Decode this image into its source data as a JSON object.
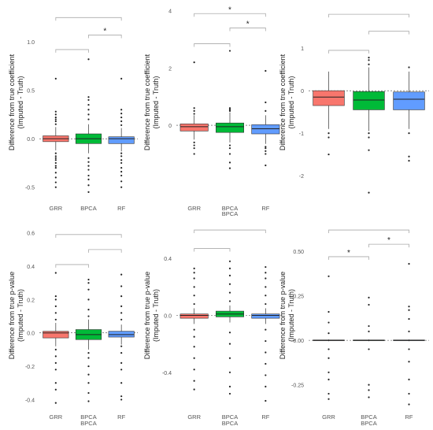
{
  "chart_data": [
    {
      "type": "box",
      "ylabel": "Difference from true coefficient\n(Imputed - Truth)",
      "xlabel": "",
      "categories": [
        "GRR",
        "BPCA",
        "RF"
      ],
      "colors": [
        "#f8766d",
        "#00ba38",
        "#619cff"
      ],
      "ylim": [
        -0.6,
        1.35
      ],
      "yticks": [
        -0.5,
        0.0,
        0.5,
        1.0
      ],
      "ytick_labels": [
        "-0.5",
        "0.0",
        "0.5",
        "1.0"
      ],
      "boxes": [
        {
          "q1": -0.03,
          "median": 0.0,
          "q3": 0.03,
          "whisker_low": -0.12,
          "whisker_high": 0.12,
          "outliers": [
            -0.5,
            -0.45,
            -0.4,
            -0.35,
            -0.3,
            -0.28,
            -0.25,
            -0.22,
            -0.2,
            -0.18,
            -0.15,
            0.15,
            0.18,
            0.2,
            0.22,
            0.25,
            0.28,
            0.62
          ]
        },
        {
          "q1": -0.05,
          "median": 0.0,
          "q3": 0.05,
          "whisker_low": -0.15,
          "whisker_high": 0.15,
          "outliers": [
            -0.55,
            -0.48,
            -0.42,
            -0.38,
            -0.32,
            -0.28,
            -0.24,
            -0.2,
            0.2,
            0.25,
            0.3,
            0.35,
            0.4,
            0.43,
            0.82
          ]
        },
        {
          "q1": -0.05,
          "median": 0.0,
          "q3": 0.02,
          "whisker_low": -0.13,
          "whisker_high": 0.11,
          "outliers": [
            -0.5,
            -0.44,
            -0.38,
            -0.34,
            -0.3,
            -0.25,
            -0.22,
            -0.18,
            -0.15,
            0.14,
            0.18,
            0.22,
            0.26,
            0.3,
            0.62
          ]
        }
      ],
      "significance": [
        {
          "from": 0,
          "to": 1,
          "y": 0.92,
          "label": ""
        },
        {
          "from": 1,
          "to": 2,
          "y": 1.07,
          "label": "*"
        },
        {
          "from": 0,
          "to": 2,
          "y": 1.25,
          "label": ""
        }
      ],
      "reference_line": 0
    },
    {
      "type": "box",
      "ylabel": "Difference from true coefficient\n(Imputed - Truth)",
      "xlabel": "BPCA",
      "categories": [
        "GRR",
        "BPCA",
        "RF"
      ],
      "colors": [
        "#f8766d",
        "#00ba38",
        "#619cff"
      ],
      "ylim": [
        -2.5,
        4.1
      ],
      "yticks": [
        0,
        2,
        4
      ],
      "ytick_labels": [
        "0",
        "2",
        "4"
      ],
      "boxes": [
        {
          "q1": -0.2,
          "median": -0.05,
          "q3": 0.05,
          "whisker_low": -0.5,
          "whisker_high": 0.35,
          "outliers": [
            -1.0,
            -0.8,
            -0.7,
            -0.6,
            0.4,
            0.5,
            0.6,
            2.2
          ]
        },
        {
          "q1": -0.25,
          "median": -0.05,
          "q3": 0.08,
          "whisker_low": -0.6,
          "whisker_high": 0.45,
          "outliers": [
            -1.5,
            -1.3,
            -1.0,
            -0.8,
            -0.7,
            0.5,
            0.55,
            0.6,
            2.6
          ]
        },
        {
          "q1": -0.3,
          "median": -0.12,
          "q3": 0.02,
          "whisker_low": -0.65,
          "whisker_high": 0.35,
          "outliers": [
            -1.4,
            -1.0,
            -0.9,
            -0.8,
            -0.75,
            0.5,
            0.8,
            1.9
          ]
        }
      ],
      "significance": [
        {
          "from": 0,
          "to": 1,
          "y": 2.85,
          "label": ""
        },
        {
          "from": 1,
          "to": 2,
          "y": 3.4,
          "label": "*"
        },
        {
          "from": 0,
          "to": 2,
          "y": 3.9,
          "label": "*"
        }
      ],
      "reference_line": 0
    },
    {
      "type": "box",
      "ylabel": "Difference from true coefficient\n(Imputed - Truth)",
      "xlabel": "",
      "categories": [
        "",
        "",
        ""
      ],
      "colors": [
        "#f8766d",
        "#00ba38",
        "#619cff"
      ],
      "ylim": [
        -2.5,
        1.95
      ],
      "yticks": [
        -2,
        -1,
        0,
        1
      ],
      "ytick_labels": [
        "-2",
        "-1",
        "0",
        "1"
      ],
      "boxes": [
        {
          "q1": -0.35,
          "median": -0.15,
          "q3": 0.0,
          "whisker_low": -0.9,
          "whisker_high": 0.45,
          "outliers": [
            -1.5,
            -1.1,
            -1.0
          ]
        },
        {
          "q1": -0.45,
          "median": -0.22,
          "q3": -0.02,
          "whisker_low": -0.95,
          "whisker_high": 0.55,
          "outliers": [
            -2.4,
            -1.4,
            -1.1,
            -1.0,
            0.62,
            0.72,
            0.78
          ]
        },
        {
          "q1": -0.45,
          "median": -0.2,
          "q3": -0.03,
          "whisker_low": -0.9,
          "whisker_high": 0.45,
          "outliers": [
            -1.65,
            -1.55,
            -1.0,
            0.55
          ]
        }
      ],
      "significance": [
        {
          "from": 0,
          "to": 1,
          "y": 0.95,
          "label": ""
        },
        {
          "from": 1,
          "to": 2,
          "y": 1.4,
          "label": ""
        },
        {
          "from": 0,
          "to": 2,
          "y": 1.8,
          "label": ""
        }
      ],
      "reference_line": 0
    },
    {
      "type": "box",
      "ylabel": "Difference from true p-value\n(Imputed - Truth)",
      "xlabel": "BPCA",
      "categories": [
        "GRR",
        "BPCA",
        "RF"
      ],
      "colors": [
        "#f8766d",
        "#00ba38",
        "#619cff"
      ],
      "ylim": [
        -0.45,
        0.66
      ],
      "yticks": [
        -0.4,
        -0.2,
        0.0,
        0.2,
        0.4,
        0.6
      ],
      "ytick_labels": [
        "-0.4",
        "-0.2",
        "0.0",
        "0.2",
        "0.4",
        "0.6"
      ],
      "boxes": [
        {
          "q1": -0.03,
          "median": 0.0,
          "q3": 0.01,
          "whisker_low": -0.08,
          "whisker_high": 0.06,
          "outliers": [
            -0.42,
            -0.34,
            -0.3,
            -0.22,
            -0.18,
            -0.14,
            -0.1,
            0.08,
            0.12,
            0.16,
            0.2,
            0.22,
            0.36
          ]
        },
        {
          "q1": -0.04,
          "median": -0.01,
          "q3": 0.02,
          "whisker_low": -0.1,
          "whisker_high": 0.08,
          "outliers": [
            -0.41,
            -0.36,
            -0.3,
            -0.25,
            -0.2,
            -0.15,
            -0.12,
            0.1,
            0.14,
            0.2,
            0.26,
            0.3,
            0.32
          ]
        },
        {
          "q1": -0.025,
          "median": -0.01,
          "q3": 0.01,
          "whisker_low": -0.07,
          "whisker_high": 0.05,
          "outliers": [
            -0.4,
            -0.38,
            -0.3,
            -0.22,
            -0.18,
            -0.12,
            -0.08,
            0.08,
            0.12,
            0.16,
            0.22,
            0.28,
            0.35
          ]
        }
      ],
      "significance": [
        {
          "from": 0,
          "to": 1,
          "y": 0.41,
          "label": ""
        },
        {
          "from": 1,
          "to": 2,
          "y": 0.5,
          "label": ""
        },
        {
          "from": 0,
          "to": 2,
          "y": 0.59,
          "label": ""
        }
      ],
      "reference_line": 0
    },
    {
      "type": "box",
      "ylabel": "Difference from true p-value\n(Imputed - Truth)",
      "xlabel": "BPCA",
      "categories": [
        "GRR",
        "BPCA",
        "RF"
      ],
      "colors": [
        "#f8766d",
        "#00ba38",
        "#619cff"
      ],
      "ylim": [
        -0.65,
        0.65
      ],
      "yticks": [
        -0.4,
        0.0,
        0.4
      ],
      "ytick_labels": [
        "-0.4",
        "0.0",
        "0.4"
      ],
      "boxes": [
        {
          "q1": -0.02,
          "median": 0.0,
          "q3": 0.01,
          "whisker_low": -0.06,
          "whisker_high": 0.05,
          "outliers": [
            -0.52,
            -0.46,
            -0.38,
            -0.3,
            -0.22,
            -0.15,
            -0.1,
            0.08,
            0.14,
            0.2,
            0.26,
            0.3,
            0.33
          ]
        },
        {
          "q1": -0.01,
          "median": 0.01,
          "q3": 0.03,
          "whisker_low": -0.05,
          "whisker_high": 0.07,
          "outliers": [
            -0.55,
            -0.5,
            -0.4,
            -0.3,
            -0.2,
            -0.12,
            0.1,
            0.16,
            0.22,
            0.28,
            0.33,
            0.38
          ]
        },
        {
          "q1": -0.02,
          "median": 0.0,
          "q3": 0.01,
          "whisker_low": -0.06,
          "whisker_high": 0.05,
          "outliers": [
            -0.6,
            -0.5,
            -0.42,
            -0.34,
            -0.26,
            -0.18,
            -0.1,
            0.08,
            0.14,
            0.2,
            0.26,
            0.3,
            0.34
          ]
        }
      ],
      "significance": [
        {
          "from": 0,
          "to": 1,
          "y": 0.47,
          "label": ""
        },
        {
          "from": 0,
          "to": 2,
          "y": 0.6,
          "label": ""
        }
      ],
      "reference_line": 0
    },
    {
      "type": "box",
      "ylabel": "Difference from true p-value\n(Imputed - Truth)",
      "xlabel": "BPCA",
      "categories": [
        "GRR",
        "BPCA",
        "RF"
      ],
      "colors": [
        "#f8766d",
        "#00ba38",
        "#619cff"
      ],
      "ylim": [
        -0.38,
        0.66
      ],
      "yticks": [
        -0.25,
        0.0,
        0.25,
        0.5
      ],
      "ytick_labels": [
        "-0.25",
        "0.00",
        "0.25",
        "0.50"
      ],
      "boxes": [
        {
          "q1": -0.002,
          "median": 0.0,
          "q3": 0.002,
          "whisker_low": -0.005,
          "whisker_high": 0.005,
          "outliers": [
            -0.33,
            -0.3,
            -0.22,
            -0.18,
            -0.1,
            -0.05,
            0.04,
            0.1,
            0.16,
            0.36
          ]
        },
        {
          "q1": -0.002,
          "median": 0.0,
          "q3": 0.002,
          "whisker_low": -0.005,
          "whisker_high": 0.005,
          "outliers": [
            -0.32,
            -0.28,
            -0.25,
            -0.05,
            0.05,
            0.08,
            0.2,
            0.24
          ]
        },
        {
          "q1": -0.002,
          "median": 0.0,
          "q3": 0.002,
          "whisker_low": -0.005,
          "whisker_high": 0.005,
          "outliers": [
            -0.36,
            -0.3,
            -0.22,
            -0.12,
            -0.05,
            0.05,
            0.12,
            0.17,
            0.19,
            0.43
          ]
        }
      ],
      "significance": [
        {
          "from": 0,
          "to": 1,
          "y": 0.47,
          "label": "*"
        },
        {
          "from": 1,
          "to": 2,
          "y": 0.54,
          "label": "*"
        },
        {
          "from": 0,
          "to": 2,
          "y": 0.62,
          "label": ""
        }
      ],
      "reference_line": 0
    }
  ]
}
